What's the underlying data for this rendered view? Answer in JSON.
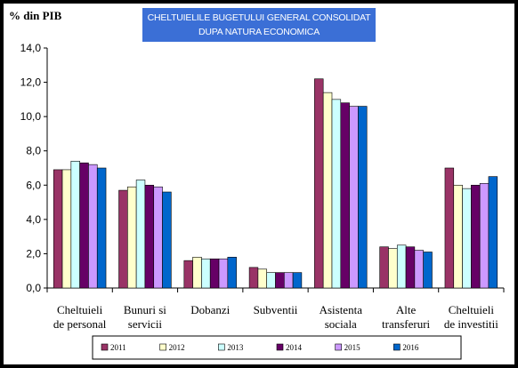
{
  "chart_data": {
    "type": "bar",
    "title": [
      "CHELTUIELILE BUGETULUI GENERAL CONSOLIDAT",
      "DUPA NATURA ECONOMICA"
    ],
    "ylabel": "% din PIB",
    "ylim": [
      0,
      14
    ],
    "yticks": [
      "0,0",
      "2,0",
      "4,0",
      "6,0",
      "8,0",
      "10,0",
      "12,0",
      "14,0"
    ],
    "grid": false,
    "legend_position": "bottom",
    "categories": [
      [
        "Cheltuieli",
        "de personal"
      ],
      [
        "Bunuri si",
        "servicii"
      ],
      [
        "Dobanzi"
      ],
      [
        "Subventii"
      ],
      [
        "Asistenta",
        "sociala"
      ],
      [
        "Alte",
        "transferuri"
      ],
      [
        "Cheltuieli",
        "de investitii"
      ]
    ],
    "series": [
      {
        "name": "2011",
        "color": "#993366",
        "values": [
          6.9,
          5.7,
          1.6,
          1.2,
          12.2,
          2.4,
          7.0
        ]
      },
      {
        "name": "2012",
        "color": "#ffffcc",
        "values": [
          6.9,
          5.9,
          1.8,
          1.1,
          11.4,
          2.3,
          6.0
        ]
      },
      {
        "name": "2013",
        "color": "#ccffff",
        "values": [
          7.4,
          6.3,
          1.7,
          0.9,
          11.0,
          2.5,
          5.8
        ]
      },
      {
        "name": "2014",
        "color": "#660066",
        "values": [
          7.3,
          6.0,
          1.7,
          0.9,
          10.8,
          2.4,
          6.0
        ]
      },
      {
        "name": "2015",
        "color": "#cc99ff",
        "values": [
          7.2,
          5.9,
          1.7,
          0.9,
          10.6,
          2.2,
          6.1
        ]
      },
      {
        "name": "2016",
        "color": "#0066cc",
        "values": [
          7.0,
          5.6,
          1.8,
          0.9,
          10.6,
          2.1,
          6.5
        ]
      }
    ]
  }
}
